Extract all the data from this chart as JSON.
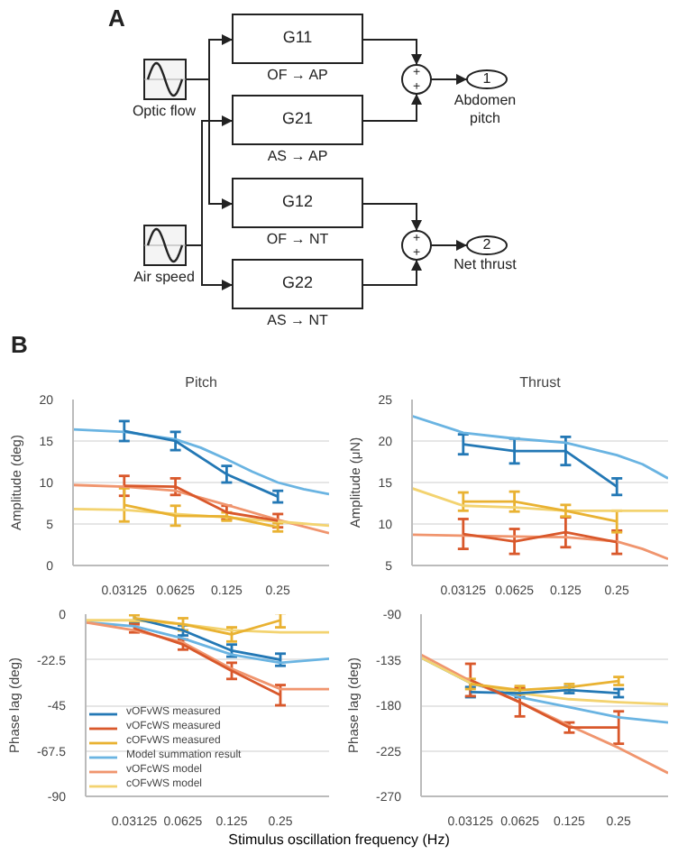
{
  "chart_data": [
    {
      "type": "other",
      "annotations": [
        "A",
        "G11",
        "OF → AP",
        "G21",
        "AS → AP",
        "G12",
        "OF → NT",
        "G22",
        "AS → NT",
        "Optic flow",
        "Air speed",
        "1",
        "Abdomen pitch",
        "2",
        "Net thrust",
        "+",
        "+",
        "+",
        "+"
      ]
    },
    {
      "type": "line",
      "title": "Pitch",
      "ylabel": "Amplitude (deg)",
      "annotations": [
        "B"
      ],
      "log": "x",
      "grid": "y",
      "marker": "none",
      "x": [
        0.03125,
        0.0625,
        0.125,
        0.25
      ],
      "xlim": [
        0.015625,
        0.5
      ],
      "xticks": [
        0.03125,
        0.0625,
        0.125,
        0.25
      ],
      "ylim": [
        0,
        20
      ],
      "yticks": [
        0,
        5,
        10,
        15,
        20
      ],
      "series": [
        {
          "color": "#6ab4e2",
          "x": [
            0.015625,
            0.03125,
            0.0625,
            0.088,
            0.125,
            0.177,
            0.25,
            0.354,
            0.5
          ],
          "values": [
            16.4,
            16.1,
            15.2,
            14.2,
            12.8,
            11.3,
            10.0,
            9.2,
            8.6
          ]
        },
        {
          "color": "#f0956e",
          "x": [
            0.015625,
            0.03125,
            0.0625,
            0.125,
            0.25,
            0.5
          ],
          "values": [
            9.7,
            9.5,
            9.0,
            7.3,
            5.5,
            3.9
          ]
        },
        {
          "color": "#f3d370",
          "x": [
            0.015625,
            0.03125,
            0.0625,
            0.125,
            0.25,
            0.5
          ],
          "values": [
            6.8,
            6.7,
            6.2,
            5.8,
            5.3,
            4.8
          ]
        },
        {
          "color": "#2378b5",
          "values": [
            16.2,
            15.0,
            11.0,
            8.3
          ],
          "errors": [
            1.2,
            1.1,
            1.0,
            0.7
          ]
        },
        {
          "color": "#d9582b",
          "values": [
            9.6,
            9.5,
            6.4,
            5.4
          ],
          "errors": [
            1.2,
            1.0,
            0.8,
            0.8
          ]
        },
        {
          "color": "#e9b232",
          "values": [
            7.3,
            6.0,
            5.9,
            4.6
          ],
          "errors": [
            2.0,
            1.2,
            0.5,
            0.5
          ]
        }
      ]
    },
    {
      "type": "line",
      "title": "Thrust",
      "ylabel": "Amplitude (μN)",
      "log": "x",
      "grid": "y",
      "marker": "none",
      "x": [
        0.03125,
        0.0625,
        0.125,
        0.25
      ],
      "xlim": [
        0.015625,
        0.5
      ],
      "xticks": [
        0.03125,
        0.0625,
        0.125,
        0.25
      ],
      "ylim": [
        5,
        25
      ],
      "yticks": [
        5,
        10,
        15,
        20,
        25
      ],
      "series": [
        {
          "color": "#6ab4e2",
          "x": [
            0.015625,
            0.03125,
            0.0625,
            0.125,
            0.25,
            0.354,
            0.5
          ],
          "values": [
            23.0,
            21.0,
            20.3,
            19.8,
            18.3,
            17.2,
            15.5
          ]
        },
        {
          "color": "#f0956e",
          "x": [
            0.015625,
            0.03125,
            0.0625,
            0.125,
            0.25,
            0.354,
            0.5
          ],
          "values": [
            8.7,
            8.6,
            8.5,
            8.4,
            7.9,
            7.0,
            5.8
          ]
        },
        {
          "color": "#f3d370",
          "x": [
            0.015625,
            0.03125,
            0.0625,
            0.125,
            0.25,
            0.5
          ],
          "values": [
            14.3,
            12.2,
            12.0,
            11.6,
            11.6,
            11.6
          ]
        },
        {
          "color": "#2378b5",
          "values": [
            19.6,
            18.8,
            18.8,
            14.5
          ],
          "errors": [
            1.2,
            1.5,
            1.7,
            1.0
          ]
        },
        {
          "color": "#d9582b",
          "values": [
            8.8,
            7.9,
            9.0,
            7.8
          ],
          "errors": [
            1.8,
            1.5,
            1.8,
            1.4
          ]
        },
        {
          "color": "#e9b232",
          "values": [
            12.7,
            12.7,
            11.6,
            10.3
          ],
          "errors": [
            1.1,
            1.2,
            0.7,
            1.3
          ]
        }
      ]
    },
    {
      "type": "line",
      "ylabel": "Phase lag (deg)",
      "xlabel": "Stimulus oscillation frequency (Hz)",
      "log": "x",
      "grid": "y",
      "marker": "none",
      "legend": "bottom left",
      "x": [
        0.03125,
        0.0625,
        0.125,
        0.25
      ],
      "xlim": [
        0.015625,
        0.5
      ],
      "xticks": [
        0.03125,
        0.0625,
        0.125,
        0.25
      ],
      "ylim": [
        -90,
        0
      ],
      "yticks": [
        -90,
        -67.5,
        -45,
        -22.5,
        0
      ],
      "series": [
        {
          "name": "Model summation result",
          "color": "#6ab4e2",
          "x": [
            0.015625,
            0.03125,
            0.0625,
            0.125,
            0.25,
            0.5
          ],
          "values": [
            -4,
            -6,
            -12,
            -20,
            -24,
            -22
          ]
        },
        {
          "name": "vOFcWS model",
          "color": "#f0956e",
          "x": [
            0.015625,
            0.03125,
            0.0625,
            0.125,
            0.25,
            0.5
          ],
          "values": [
            -4,
            -8,
            -14,
            -27,
            -37,
            -37
          ]
        },
        {
          "name": "cOFvWS model",
          "color": "#f3d370",
          "x": [
            0.015625,
            0.03125,
            0.0625,
            0.125,
            0.25,
            0.5
          ],
          "values": [
            -3,
            -3,
            -5,
            -8,
            -9,
            -9
          ]
        },
        {
          "name": "vOFvWS measured",
          "color": "#2378b5",
          "values": [
            -2,
            -8,
            -18,
            -22.5
          ],
          "errors": [
            2,
            2.5,
            3,
            3
          ]
        },
        {
          "name": "vOFcWS measured",
          "color": "#d9582b",
          "values": [
            -7,
            -15,
            -28,
            -40
          ],
          "errors": [
            2,
            2.5,
            4,
            5
          ]
        },
        {
          "name": "cOFvWS measured",
          "color": "#e9b232",
          "values": [
            -2,
            -5,
            -10,
            -3
          ],
          "errors": [
            1.5,
            3,
            3.5,
            3.5
          ]
        }
      ]
    },
    {
      "type": "line",
      "ylabel": "Phase lag (deg)",
      "log": "x",
      "grid": "y",
      "marker": "none",
      "x": [
        0.03125,
        0.0625,
        0.125,
        0.25
      ],
      "xlim": [
        0.015625,
        0.5
      ],
      "xticks": [
        0.03125,
        0.0625,
        0.125,
        0.25
      ],
      "ylim": [
        -270,
        -90
      ],
      "yticks": [
        -270,
        -225,
        -180,
        -135,
        -90
      ],
      "series": [
        {
          "color": "#6ab4e2",
          "x": [
            0.015625,
            0.03125,
            0.0625,
            0.125,
            0.25,
            0.5
          ],
          "values": [
            -133,
            -158,
            -172,
            -182,
            -192,
            -197
          ]
        },
        {
          "color": "#f0956e",
          "x": [
            0.015625,
            0.03125,
            0.0625,
            0.125,
            0.25,
            0.5
          ],
          "values": [
            -130,
            -156,
            -177,
            -200,
            -222,
            -247
          ]
        },
        {
          "color": "#f3d370",
          "x": [
            0.015625,
            0.03125,
            0.0625,
            0.125,
            0.25,
            0.5
          ],
          "values": [
            -133,
            -158,
            -168,
            -174,
            -177,
            -179
          ]
        },
        {
          "color": "#2378b5",
          "values": [
            -167,
            -168,
            -165,
            -168
          ],
          "errors": [
            5,
            4,
            3,
            4
          ]
        },
        {
          "color": "#d9582b",
          "values": [
            -155,
            -177,
            -202,
            -202
          ],
          "errors": [
            16,
            14,
            5,
            16
          ]
        },
        {
          "color": "#e9b232",
          "values": [
            -159,
            -165,
            -162,
            -156
          ],
          "errors": [
            5,
            4,
            3,
            4
          ]
        }
      ]
    }
  ]
}
